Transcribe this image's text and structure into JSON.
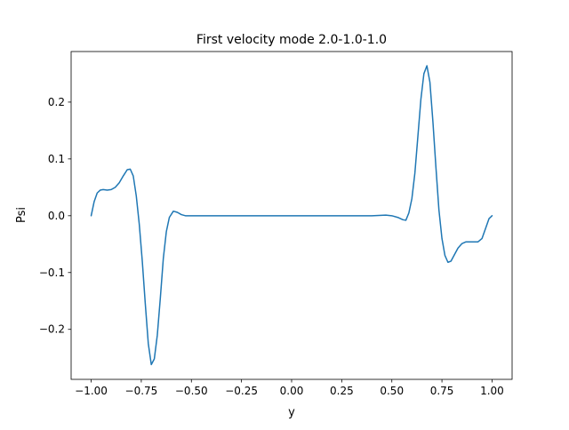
{
  "chart_data": {
    "type": "line",
    "title": "First velocity mode 2.0-1.0-1.0",
    "xlabel": "y",
    "ylabel": "Psi",
    "xlim": [
      -1.1,
      1.1
    ],
    "ylim": [
      -0.288,
      0.289
    ],
    "xticks": [
      -1.0,
      -0.75,
      -0.5,
      -0.25,
      0.0,
      0.25,
      0.5,
      0.75,
      1.0
    ],
    "xtick_labels": [
      "−1.00",
      "−0.75",
      "−0.50",
      "−0.25",
      "0.00",
      "0.25",
      "0.50",
      "0.75",
      "1.00"
    ],
    "yticks": [
      -0.2,
      -0.1,
      0.0,
      0.1,
      0.2
    ],
    "ytick_labels": [
      "−0.2",
      "−0.1",
      "0.0",
      "0.1",
      "0.2"
    ],
    "grid": false,
    "series": [
      {
        "color": "#1f77b4",
        "x": [
          -1.0,
          -0.985,
          -0.97,
          -0.955,
          -0.94,
          -0.92,
          -0.9,
          -0.88,
          -0.86,
          -0.84,
          -0.82,
          -0.805,
          -0.79,
          -0.775,
          -0.76,
          -0.745,
          -0.73,
          -0.715,
          -0.7,
          -0.685,
          -0.67,
          -0.655,
          -0.64,
          -0.625,
          -0.61,
          -0.59,
          -0.57,
          -0.55,
          -0.53,
          -0.5,
          -0.47,
          -0.4,
          -0.3,
          -0.2,
          -0.1,
          0.0,
          0.1,
          0.2,
          0.3,
          0.4,
          0.47,
          0.5,
          0.53,
          0.555,
          0.57,
          0.585,
          0.6,
          0.615,
          0.63,
          0.645,
          0.66,
          0.675,
          0.69,
          0.705,
          0.72,
          0.735,
          0.75,
          0.765,
          0.78,
          0.795,
          0.81,
          0.83,
          0.85,
          0.87,
          0.89,
          0.91,
          0.93,
          0.95,
          0.97,
          0.985,
          1.0
        ],
        "y": [
          0.0,
          0.025,
          0.04,
          0.045,
          0.046,
          0.045,
          0.046,
          0.05,
          0.058,
          0.07,
          0.081,
          0.082,
          0.07,
          0.035,
          -0.015,
          -0.08,
          -0.155,
          -0.225,
          -0.262,
          -0.252,
          -0.21,
          -0.145,
          -0.075,
          -0.028,
          -0.003,
          0.008,
          0.006,
          0.002,
          0.0,
          0.0,
          0.0,
          0.0,
          0.0,
          0.0,
          0.0,
          0.0,
          0.0,
          0.0,
          0.0,
          0.0,
          0.001,
          0.0,
          -0.003,
          -0.007,
          -0.008,
          0.005,
          0.03,
          0.075,
          0.14,
          0.205,
          0.25,
          0.264,
          0.235,
          0.165,
          0.085,
          0.01,
          -0.04,
          -0.07,
          -0.082,
          -0.08,
          -0.07,
          -0.057,
          -0.049,
          -0.046,
          -0.046,
          -0.046,
          -0.046,
          -0.04,
          -0.02,
          -0.005,
          0.0
        ]
      }
    ]
  }
}
